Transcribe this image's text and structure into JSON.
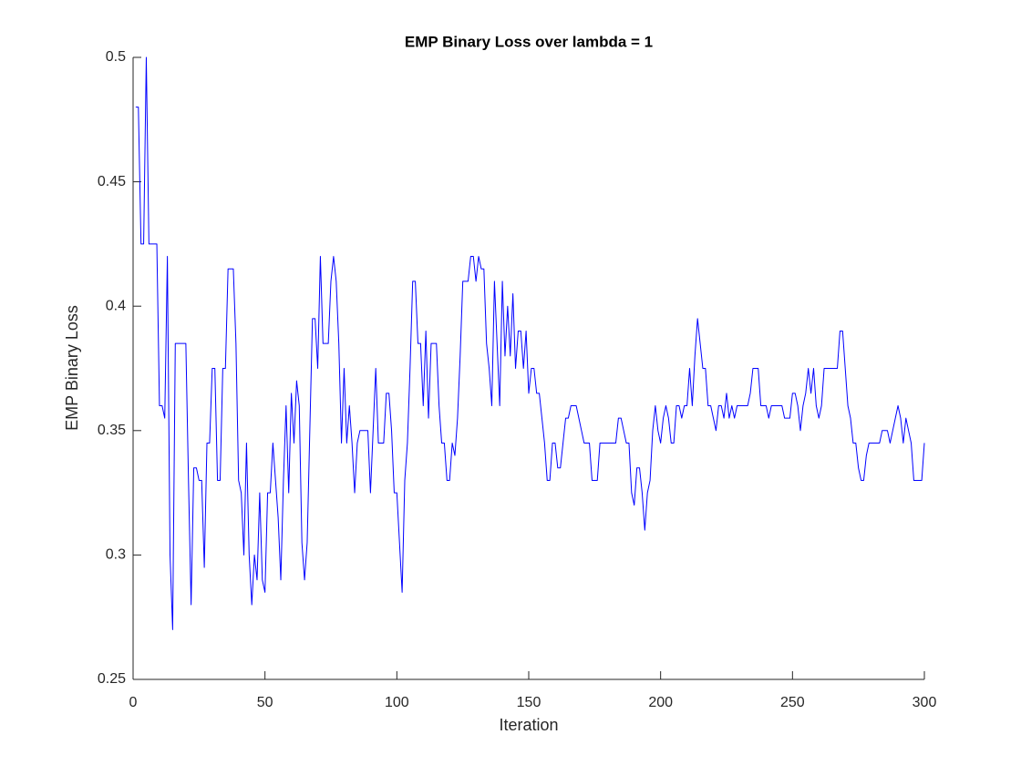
{
  "chart_data": {
    "type": "line",
    "title": "EMP Binary Loss over lambda = 1",
    "xlabel": "Iteration",
    "ylabel": "EMP Binary Loss",
    "color": "#0000ff",
    "grid": false,
    "xlim": [
      0,
      300
    ],
    "xticks": [
      0,
      50,
      100,
      150,
      200,
      250,
      300
    ],
    "ylim": [
      0.25,
      0.5
    ],
    "yticks": [
      0.25,
      0.3,
      0.35,
      0.4,
      0.45,
      0.5
    ],
    "x": [
      1,
      2,
      3,
      4,
      5,
      6,
      7,
      8,
      9,
      10,
      11,
      12,
      13,
      14,
      15,
      16,
      17,
      18,
      19,
      20,
      21,
      22,
      23,
      24,
      25,
      26,
      27,
      28,
      29,
      30,
      31,
      32,
      33,
      34,
      35,
      36,
      37,
      38,
      39,
      40,
      41,
      42,
      43,
      44,
      45,
      46,
      47,
      48,
      49,
      50,
      51,
      52,
      53,
      54,
      55,
      56,
      57,
      58,
      59,
      60,
      61,
      62,
      63,
      64,
      65,
      66,
      67,
      68,
      69,
      70,
      71,
      72,
      73,
      74,
      75,
      76,
      77,
      78,
      79,
      80,
      81,
      82,
      83,
      84,
      85,
      86,
      87,
      88,
      89,
      90,
      91,
      92,
      93,
      94,
      95,
      96,
      97,
      98,
      99,
      100,
      101,
      102,
      103,
      104,
      105,
      106,
      107,
      108,
      109,
      110,
      111,
      112,
      113,
      114,
      115,
      116,
      117,
      118,
      119,
      120,
      121,
      122,
      123,
      124,
      125,
      126,
      127,
      128,
      129,
      130,
      131,
      132,
      133,
      134,
      135,
      136,
      137,
      138,
      139,
      140,
      141,
      142,
      143,
      144,
      145,
      146,
      147,
      148,
      149,
      150,
      151,
      152,
      153,
      154,
      155,
      156,
      157,
      158,
      159,
      160,
      161,
      162,
      163,
      164,
      165,
      166,
      167,
      168,
      169,
      170,
      171,
      172,
      173,
      174,
      175,
      176,
      177,
      178,
      179,
      180,
      181,
      182,
      183,
      184,
      185,
      186,
      187,
      188,
      189,
      190,
      191,
      192,
      193,
      194,
      195,
      196,
      197,
      198,
      199,
      200,
      201,
      202,
      203,
      204,
      205,
      206,
      207,
      208,
      209,
      210,
      211,
      212,
      213,
      214,
      215,
      216,
      217,
      218,
      219,
      220,
      221,
      222,
      223,
      224,
      225,
      226,
      227,
      228,
      229,
      230,
      231,
      232,
      233,
      234,
      235,
      236,
      237,
      238,
      239,
      240,
      241,
      242,
      243,
      244,
      245,
      246,
      247,
      248,
      249,
      250,
      251,
      252,
      253,
      254,
      255,
      256,
      257,
      258,
      259,
      260,
      261,
      262,
      263,
      264,
      265,
      266,
      267,
      268,
      269,
      270,
      271,
      272,
      273,
      274,
      275,
      276,
      277,
      278,
      279,
      280,
      281,
      282,
      283,
      284,
      285,
      286,
      287,
      288,
      289,
      290,
      291,
      292,
      293,
      294,
      295,
      296,
      297,
      298,
      299,
      300
    ],
    "values": [
      0.48,
      0.48,
      0.425,
      0.425,
      0.5,
      0.425,
      0.425,
      0.425,
      0.425,
      0.36,
      0.36,
      0.355,
      0.42,
      0.3,
      0.27,
      0.385,
      0.385,
      0.385,
      0.385,
      0.385,
      0.33,
      0.28,
      0.335,
      0.335,
      0.33,
      0.33,
      0.295,
      0.345,
      0.345,
      0.375,
      0.375,
      0.33,
      0.33,
      0.375,
      0.375,
      0.415,
      0.415,
      0.415,
      0.385,
      0.33,
      0.325,
      0.3,
      0.345,
      0.3,
      0.28,
      0.3,
      0.29,
      0.325,
      0.29,
      0.285,
      0.325,
      0.325,
      0.345,
      0.33,
      0.315,
      0.29,
      0.33,
      0.36,
      0.325,
      0.365,
      0.345,
      0.37,
      0.36,
      0.305,
      0.29,
      0.305,
      0.35,
      0.395,
      0.395,
      0.375,
      0.42,
      0.385,
      0.385,
      0.385,
      0.41,
      0.42,
      0.41,
      0.385,
      0.345,
      0.375,
      0.345,
      0.36,
      0.345,
      0.325,
      0.345,
      0.35,
      0.35,
      0.35,
      0.35,
      0.325,
      0.35,
      0.375,
      0.345,
      0.345,
      0.345,
      0.365,
      0.365,
      0.35,
      0.325,
      0.325,
      0.305,
      0.285,
      0.33,
      0.345,
      0.375,
      0.41,
      0.41,
      0.385,
      0.385,
      0.36,
      0.39,
      0.355,
      0.385,
      0.385,
      0.385,
      0.36,
      0.345,
      0.345,
      0.33,
      0.33,
      0.345,
      0.34,
      0.355,
      0.38,
      0.41,
      0.41,
      0.41,
      0.42,
      0.42,
      0.41,
      0.42,
      0.415,
      0.415,
      0.385,
      0.375,
      0.36,
      0.41,
      0.385,
      0.36,
      0.41,
      0.38,
      0.4,
      0.38,
      0.405,
      0.375,
      0.39,
      0.39,
      0.375,
      0.39,
      0.365,
      0.375,
      0.375,
      0.365,
      0.365,
      0.355,
      0.345,
      0.33,
      0.33,
      0.345,
      0.345,
      0.335,
      0.335,
      0.345,
      0.355,
      0.355,
      0.36,
      0.36,
      0.36,
      0.355,
      0.35,
      0.345,
      0.345,
      0.345,
      0.33,
      0.33,
      0.33,
      0.345,
      0.345,
      0.345,
      0.345,
      0.345,
      0.345,
      0.345,
      0.355,
      0.355,
      0.35,
      0.345,
      0.345,
      0.325,
      0.32,
      0.335,
      0.335,
      0.325,
      0.31,
      0.325,
      0.33,
      0.35,
      0.36,
      0.35,
      0.345,
      0.355,
      0.36,
      0.355,
      0.345,
      0.345,
      0.36,
      0.36,
      0.355,
      0.36,
      0.36,
      0.375,
      0.36,
      0.38,
      0.395,
      0.385,
      0.375,
      0.375,
      0.36,
      0.36,
      0.355,
      0.35,
      0.36,
      0.36,
      0.355,
      0.365,
      0.355,
      0.36,
      0.355,
      0.36,
      0.36,
      0.36,
      0.36,
      0.36,
      0.365,
      0.375,
      0.375,
      0.375,
      0.36,
      0.36,
      0.36,
      0.355,
      0.36,
      0.36,
      0.36,
      0.36,
      0.36,
      0.355,
      0.355,
      0.355,
      0.365,
      0.365,
      0.36,
      0.35,
      0.36,
      0.365,
      0.375,
      0.365,
      0.375,
      0.36,
      0.355,
      0.36,
      0.375,
      0.375,
      0.375,
      0.375,
      0.375,
      0.375,
      0.39,
      0.39,
      0.375,
      0.36,
      0.355,
      0.345,
      0.345,
      0.335,
      0.33,
      0.33,
      0.34,
      0.345,
      0.345,
      0.345,
      0.345,
      0.345,
      0.35,
      0.35,
      0.35,
      0.345,
      0.35,
      0.355,
      0.36,
      0.355,
      0.345,
      0.355,
      0.35,
      0.345,
      0.33,
      0.33,
      0.33,
      0.33,
      0.345
    ]
  }
}
